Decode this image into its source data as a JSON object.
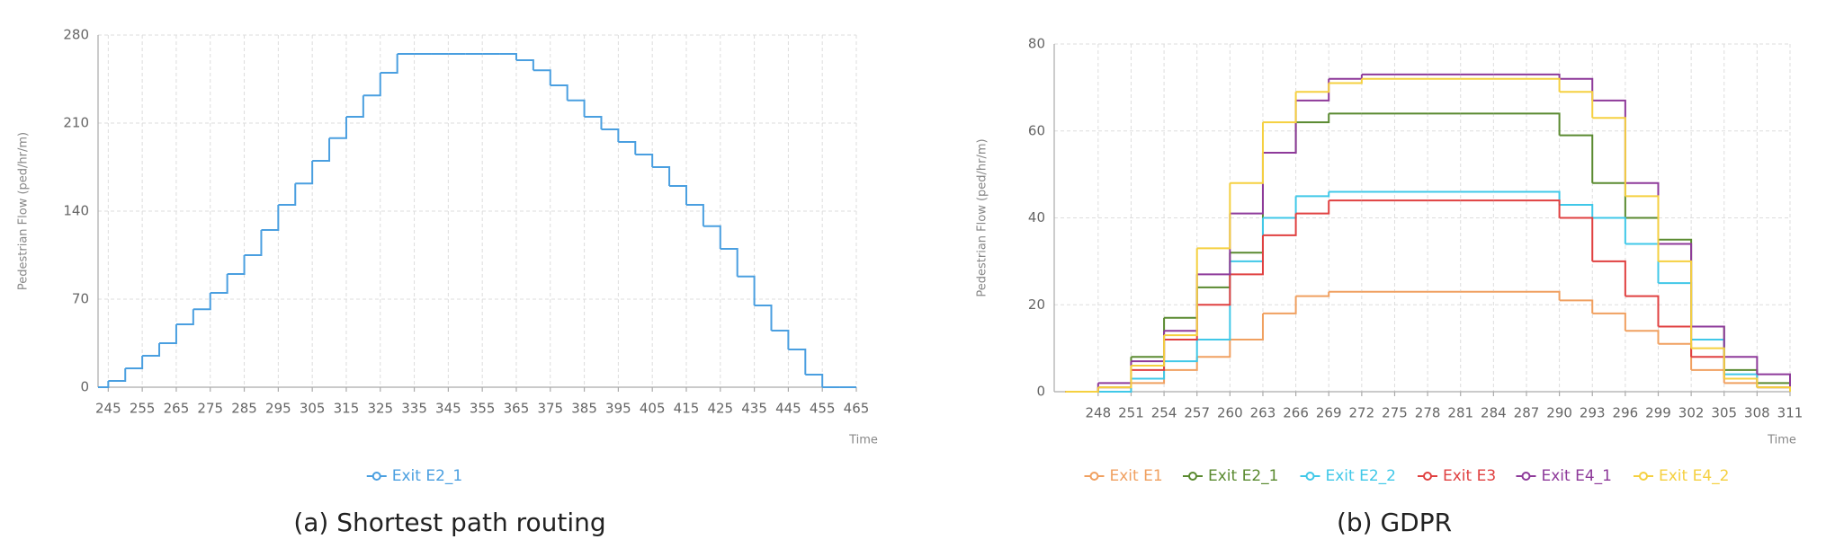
{
  "chart_data": [
    {
      "type": "line",
      "caption": "(a) Shortest path routing",
      "xlabel": "Time",
      "ylabel": "Pedestrian Flow (ped/hr/m)",
      "x": [
        242,
        245,
        250,
        255,
        260,
        265,
        270,
        275,
        280,
        285,
        290,
        295,
        300,
        305,
        310,
        315,
        320,
        325,
        330,
        335,
        340,
        345,
        350,
        355,
        360,
        365,
        370,
        375,
        380,
        385,
        390,
        395,
        400,
        405,
        410,
        415,
        420,
        425,
        430,
        435,
        440,
        445,
        450,
        455,
        460,
        465
      ],
      "series": [
        {
          "name": "Exit E2_1",
          "color": "#4a9fe0",
          "values": [
            0,
            5,
            15,
            25,
            35,
            50,
            62,
            75,
            90,
            105,
            125,
            145,
            162,
            180,
            198,
            215,
            232,
            250,
            265,
            265,
            265,
            265,
            265,
            265,
            265,
            260,
            252,
            240,
            228,
            215,
            205,
            195,
            185,
            175,
            160,
            145,
            128,
            110,
            88,
            65,
            45,
            30,
            10,
            0,
            0,
            0
          ]
        }
      ],
      "xlim": [
        242,
        465
      ],
      "xticks": [
        245,
        255,
        265,
        275,
        285,
        295,
        305,
        315,
        325,
        335,
        345,
        355,
        365,
        375,
        385,
        395,
        405,
        415,
        425,
        435,
        445,
        455,
        465
      ],
      "ylim": [
        0,
        280
      ],
      "yticks": [
        0,
        70,
        140,
        210,
        280
      ],
      "grid": true
    },
    {
      "type": "line",
      "caption": "(b) GDPR",
      "xlabel": "Time",
      "ylabel": "Pedestrian Flow (ped/hr/m)",
      "x": [
        245,
        248,
        251,
        254,
        257,
        260,
        263,
        266,
        269,
        272,
        275,
        278,
        281,
        284,
        287,
        290,
        293,
        296,
        299,
        302,
        305,
        308,
        311
      ],
      "series": [
        {
          "name": "Exit E1",
          "color": "#f0a060",
          "values": [
            0,
            0,
            2,
            5,
            8,
            12,
            18,
            22,
            23,
            23,
            23,
            23,
            23,
            23,
            23,
            21,
            18,
            14,
            11,
            5,
            2,
            1,
            0
          ]
        },
        {
          "name": "Exit E2_1",
          "color": "#5a8a30",
          "values": [
            0,
            1,
            8,
            17,
            24,
            32,
            55,
            62,
            64,
            64,
            64,
            64,
            64,
            64,
            64,
            59,
            48,
            40,
            35,
            15,
            5,
            2,
            0
          ]
        },
        {
          "name": "Exit E2_2",
          "color": "#40c8e8",
          "values": [
            0,
            0,
            3,
            7,
            12,
            30,
            40,
            45,
            46,
            46,
            46,
            46,
            46,
            46,
            46,
            43,
            40,
            34,
            25,
            12,
            4,
            1,
            0
          ]
        },
        {
          "name": "Exit E3",
          "color": "#e04040",
          "values": [
            0,
            1,
            5,
            12,
            20,
            27,
            36,
            41,
            44,
            44,
            44,
            44,
            44,
            44,
            44,
            40,
            30,
            22,
            15,
            8,
            3,
            1,
            0
          ]
        },
        {
          "name": "Exit E4_1",
          "color": "#8e3a9a",
          "values": [
            0,
            2,
            7,
            14,
            27,
            41,
            55,
            67,
            72,
            73,
            73,
            73,
            73,
            73,
            73,
            72,
            67,
            48,
            34,
            15,
            8,
            4,
            0
          ]
        },
        {
          "name": "Exit E4_2",
          "color": "#f5d040",
          "values": [
            0,
            1,
            6,
            13,
            33,
            48,
            62,
            69,
            71,
            72,
            72,
            72,
            72,
            72,
            72,
            69,
            63,
            45,
            30,
            10,
            3,
            1,
            0
          ]
        }
      ],
      "xlim": [
        244,
        311
      ],
      "xticks": [
        248,
        251,
        254,
        257,
        260,
        263,
        266,
        269,
        272,
        275,
        278,
        281,
        284,
        287,
        290,
        293,
        296,
        299,
        302,
        305,
        308,
        311
      ],
      "ylim": [
        0,
        80
      ],
      "yticks": [
        0,
        20,
        40,
        60,
        80
      ],
      "grid": true
    }
  ]
}
